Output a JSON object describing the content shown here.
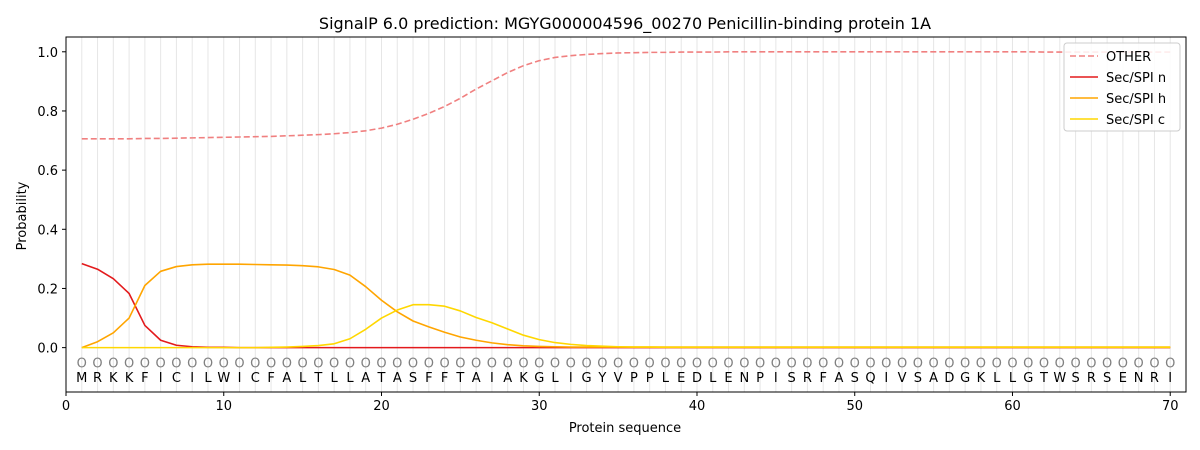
{
  "chart_data": {
    "type": "line",
    "title": "SignalP 6.0 prediction: MGYG000004596_00270 Penicillin-binding protein 1A",
    "xlabel": "Protein sequence",
    "ylabel": "Probability",
    "xlim": [
      0,
      71
    ],
    "ylim": [
      -0.15,
      1.05
    ],
    "x_ticks": [
      "0",
      "10",
      "20",
      "30",
      "40",
      "50",
      "60",
      "70"
    ],
    "y_ticks": [
      "0.0",
      "0.2",
      "0.4",
      "0.6",
      "0.8",
      "1.0"
    ],
    "legend_position": "top-right",
    "grid": "vertical lines at each residue",
    "sequence": [
      "M",
      "R",
      "K",
      "K",
      "F",
      "I",
      "C",
      "I",
      "L",
      "W",
      "I",
      "C",
      "F",
      "A",
      "L",
      "T",
      "L",
      "L",
      "A",
      "T",
      "A",
      "S",
      "F",
      "F",
      "T",
      "A",
      "I",
      "A",
      "K",
      "G",
      "L",
      "I",
      "G",
      "Y",
      "V",
      "P",
      "P",
      "L",
      "E",
      "D",
      "L",
      "E",
      "N",
      "P",
      "I",
      "S",
      "R",
      "F",
      "A",
      "S",
      "Q",
      "I",
      "V",
      "S",
      "A",
      "D",
      "G",
      "K",
      "L",
      "L",
      "G",
      "T",
      "W",
      "S",
      "R",
      "S",
      "E",
      "N",
      "R",
      "I"
    ],
    "marker_symbol": "O",
    "series": [
      {
        "name": "OTHER",
        "color": "#f08080",
        "dash": "dashed",
        "values": [
          0.706,
          0.706,
          0.706,
          0.706,
          0.707,
          0.707,
          0.708,
          0.709,
          0.71,
          0.711,
          0.712,
          0.713,
          0.714,
          0.716,
          0.718,
          0.72,
          0.723,
          0.727,
          0.733,
          0.742,
          0.755,
          0.772,
          0.792,
          0.815,
          0.843,
          0.874,
          0.902,
          0.93,
          0.953,
          0.97,
          0.981,
          0.987,
          0.991,
          0.994,
          0.996,
          0.997,
          0.998,
          0.998,
          0.999,
          0.999,
          0.999,
          1.0,
          1.0,
          1.0,
          1.0,
          1.0,
          1.0,
          1.0,
          1.0,
          1.0,
          1.0,
          1.0,
          1.0,
          1.0,
          1.0,
          1.0,
          1.0,
          1.0,
          1.0,
          1.0,
          1.0,
          0.999,
          0.999,
          0.999,
          0.999,
          0.999,
          0.999,
          0.999,
          0.999,
          0.999
        ]
      },
      {
        "name": "Sec/SPI n",
        "color": "#e31a1c",
        "dash": "solid",
        "values": [
          0.284,
          0.265,
          0.233,
          0.183,
          0.075,
          0.025,
          0.008,
          0.003,
          0.001,
          0.001,
          0,
          0,
          0,
          0,
          0,
          0,
          0,
          0,
          0,
          0,
          0,
          0,
          0,
          0,
          0,
          0,
          0,
          0,
          0,
          0,
          0,
          0,
          0,
          0,
          0,
          0,
          0,
          0,
          0,
          0,
          0,
          0,
          0,
          0,
          0,
          0,
          0,
          0,
          0,
          0,
          0,
          0,
          0,
          0,
          0,
          0,
          0,
          0,
          0,
          0,
          0,
          0,
          0,
          0,
          0,
          0,
          0,
          0,
          0,
          0
        ]
      },
      {
        "name": "Sec/SPI h",
        "color": "#ffa500",
        "dash": "solid",
        "values": [
          0.0,
          0.02,
          0.05,
          0.1,
          0.21,
          0.258,
          0.274,
          0.28,
          0.282,
          0.282,
          0.282,
          0.281,
          0.28,
          0.279,
          0.277,
          0.273,
          0.264,
          0.245,
          0.206,
          0.16,
          0.121,
          0.09,
          0.07,
          0.052,
          0.036,
          0.025,
          0.016,
          0.01,
          0.006,
          0.004,
          0.003,
          0.002,
          0.002,
          0.002,
          0.002,
          0.002,
          0.002,
          0.002,
          0.002,
          0.002,
          0.002,
          0.002,
          0.002,
          0.002,
          0.002,
          0.002,
          0.002,
          0.002,
          0.002,
          0.002,
          0.002,
          0.002,
          0.002,
          0.002,
          0.002,
          0.002,
          0.002,
          0.002,
          0.002,
          0.002,
          0.002,
          0.002,
          0.002,
          0.002,
          0.002,
          0.002,
          0.002,
          0.002,
          0.002,
          0.002
        ]
      },
      {
        "name": "Sec/SPI c",
        "color": "#ffd700",
        "dash": "solid",
        "values": [
          0.0,
          0.0,
          0.0,
          0.0,
          0.0,
          0.0,
          0.0,
          0.0,
          0.0,
          0.0,
          0.0,
          0.0,
          0.001,
          0.002,
          0.004,
          0.007,
          0.013,
          0.03,
          0.062,
          0.1,
          0.127,
          0.145,
          0.145,
          0.14,
          0.124,
          0.102,
          0.084,
          0.063,
          0.042,
          0.027,
          0.017,
          0.011,
          0.007,
          0.005,
          0.003,
          0.002,
          0.002,
          0.001,
          0.001,
          0.001,
          0.001,
          0.001,
          0.001,
          0.001,
          0.001,
          0.001,
          0.001,
          0.001,
          0.001,
          0.001,
          0.001,
          0.001,
          0.001,
          0.001,
          0.001,
          0.001,
          0.001,
          0.001,
          0.001,
          0.001,
          0.001,
          0.001,
          0.001,
          0.001,
          0.001,
          0.001,
          0.001,
          0.001,
          0.001,
          0.001
        ]
      }
    ]
  }
}
